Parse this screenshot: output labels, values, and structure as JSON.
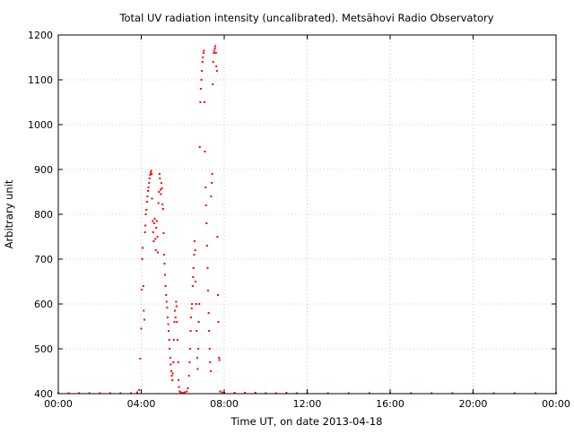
{
  "chart_data": {
    "type": "scatter",
    "title": "Total UV radiation intensity (uncalibrated). Metsähovi Radio Observatory",
    "xlabel": "Time UT, on date 2013-04-18",
    "ylabel": "Arbitrary unit",
    "x_unit": "hours UT",
    "xlim": [
      0,
      24
    ],
    "ylim": [
      400,
      1200
    ],
    "x_ticks": [
      0,
      4,
      8,
      12,
      16,
      20,
      24
    ],
    "x_tick_labels": [
      "00:00",
      "04:00",
      "08:00",
      "12:00",
      "16:00",
      "20:00",
      "00:00"
    ],
    "y_ticks": [
      400,
      500,
      600,
      700,
      800,
      900,
      1000,
      1100,
      1200
    ],
    "y_tick_labels": [
      "400",
      "500",
      "600",
      "700",
      "800",
      "900",
      "1000",
      "1100",
      "1200"
    ],
    "grid": true,
    "legend": "none",
    "marker_color": "#ff0000",
    "series": [
      {
        "values": [
          [
            0.0,
            401
          ],
          [
            0.5,
            401
          ],
          [
            1.0,
            401
          ],
          [
            1.5,
            401
          ],
          [
            2.0,
            401
          ],
          [
            2.5,
            401
          ],
          [
            3.0,
            401
          ],
          [
            3.5,
            401
          ],
          [
            3.8,
            403
          ],
          [
            3.9,
            408
          ],
          [
            3.95,
            478
          ],
          [
            4.0,
            545
          ],
          [
            4.02,
            632
          ],
          [
            4.05,
            700
          ],
          [
            4.07,
            725
          ],
          [
            4.1,
            640
          ],
          [
            4.12,
            585
          ],
          [
            4.15,
            565
          ],
          [
            4.18,
            760
          ],
          [
            4.2,
            775
          ],
          [
            4.22,
            800
          ],
          [
            4.25,
            810
          ],
          [
            4.28,
            828
          ],
          [
            4.3,
            840
          ],
          [
            4.33,
            852
          ],
          [
            4.35,
            860
          ],
          [
            4.38,
            870
          ],
          [
            4.4,
            880
          ],
          [
            4.43,
            888
          ],
          [
            4.45,
            893
          ],
          [
            4.48,
            897
          ],
          [
            4.5,
            890
          ],
          [
            4.52,
            835
          ],
          [
            4.55,
            785
          ],
          [
            4.57,
            760
          ],
          [
            4.6,
            740
          ],
          [
            4.62,
            780
          ],
          [
            4.65,
            790
          ],
          [
            4.68,
            745
          ],
          [
            4.7,
            720
          ],
          [
            4.72,
            770
          ],
          [
            4.75,
            785
          ],
          [
            4.78,
            750
          ],
          [
            4.8,
            715
          ],
          [
            4.83,
            825
          ],
          [
            4.85,
            850
          ],
          [
            4.88,
            890
          ],
          [
            4.9,
            880
          ],
          [
            4.93,
            855
          ],
          [
            4.95,
            845
          ],
          [
            4.97,
            870
          ],
          [
            5.0,
            858
          ],
          [
            5.02,
            822
          ],
          [
            5.05,
            812
          ],
          [
            5.08,
            758
          ],
          [
            5.1,
            710
          ],
          [
            5.12,
            690
          ],
          [
            5.15,
            665
          ],
          [
            5.17,
            640
          ],
          [
            5.2,
            620
          ],
          [
            5.22,
            605
          ],
          [
            5.25,
            592
          ],
          [
            5.27,
            570
          ],
          [
            5.3,
            555
          ],
          [
            5.32,
            540
          ],
          [
            5.35,
            520
          ],
          [
            5.37,
            500
          ],
          [
            5.4,
            480
          ],
          [
            5.42,
            465
          ],
          [
            5.45,
            450
          ],
          [
            5.47,
            440
          ],
          [
            5.5,
            430
          ],
          [
            5.52,
            445
          ],
          [
            5.55,
            470
          ],
          [
            5.57,
            520
          ],
          [
            5.6,
            560
          ],
          [
            5.62,
            585
          ],
          [
            5.65,
            570
          ],
          [
            5.68,
            605
          ],
          [
            5.7,
            595
          ],
          [
            5.72,
            560
          ],
          [
            5.75,
            520
          ],
          [
            5.78,
            470
          ],
          [
            5.8,
            430
          ],
          [
            5.82,
            415
          ],
          [
            5.85,
            405
          ],
          [
            5.9,
            403
          ],
          [
            6.0,
            402
          ],
          [
            6.1,
            403
          ],
          [
            6.2,
            405
          ],
          [
            6.25,
            412
          ],
          [
            6.3,
            440
          ],
          [
            6.33,
            470
          ],
          [
            6.35,
            500
          ],
          [
            6.38,
            540
          ],
          [
            6.4,
            570
          ],
          [
            6.43,
            590
          ],
          [
            6.45,
            600
          ],
          [
            6.48,
            640
          ],
          [
            6.5,
            660
          ],
          [
            6.52,
            680
          ],
          [
            6.55,
            710
          ],
          [
            6.57,
            740
          ],
          [
            6.6,
            720
          ],
          [
            6.62,
            650
          ],
          [
            6.65,
            600
          ],
          [
            6.67,
            540
          ],
          [
            6.7,
            480
          ],
          [
            6.72,
            455
          ],
          [
            6.75,
            500
          ],
          [
            6.77,
            560
          ],
          [
            6.8,
            600
          ],
          [
            6.82,
            950
          ],
          [
            6.85,
            1050
          ],
          [
            6.87,
            1080
          ],
          [
            6.9,
            1100
          ],
          [
            6.92,
            1120
          ],
          [
            6.95,
            1140
          ],
          [
            6.97,
            1150
          ],
          [
            7.0,
            1160
          ],
          [
            7.02,
            1165
          ],
          [
            7.05,
            1050
          ],
          [
            7.07,
            940
          ],
          [
            7.1,
            860
          ],
          [
            7.12,
            820
          ],
          [
            7.15,
            780
          ],
          [
            7.17,
            730
          ],
          [
            7.2,
            680
          ],
          [
            7.22,
            630
          ],
          [
            7.25,
            580
          ],
          [
            7.27,
            540
          ],
          [
            7.3,
            500
          ],
          [
            7.32,
            470
          ],
          [
            7.35,
            450
          ],
          [
            7.37,
            840
          ],
          [
            7.4,
            870
          ],
          [
            7.42,
            890
          ],
          [
            7.45,
            1090
          ],
          [
            7.47,
            1140
          ],
          [
            7.5,
            1160
          ],
          [
            7.52,
            1165
          ],
          [
            7.55,
            1170
          ],
          [
            7.57,
            1175
          ],
          [
            7.6,
            1160
          ],
          [
            7.62,
            1130
          ],
          [
            7.65,
            1120
          ],
          [
            7.67,
            750
          ],
          [
            7.7,
            620
          ],
          [
            7.72,
            560
          ],
          [
            7.75,
            480
          ],
          [
            7.77,
            475
          ],
          [
            7.8,
            405
          ],
          [
            7.9,
            403
          ],
          [
            8.0,
            402
          ],
          [
            8.5,
            402
          ],
          [
            9.0,
            402
          ],
          [
            9.5,
            402
          ],
          [
            10.0,
            401
          ],
          [
            10.5,
            401
          ],
          [
            11.0,
            402
          ],
          [
            11.5,
            401
          ],
          [
            12.0,
            401
          ],
          [
            13.0,
            401
          ],
          [
            14.0,
            401
          ],
          [
            15.0,
            401
          ],
          [
            16.0,
            401
          ],
          [
            17.0,
            401
          ],
          [
            18.0,
            401
          ],
          [
            19.0,
            401
          ],
          [
            20.0,
            401
          ],
          [
            21.0,
            401
          ],
          [
            22.0,
            401
          ],
          [
            23.0,
            401
          ],
          [
            24.0,
            401
          ]
        ]
      }
    ]
  }
}
